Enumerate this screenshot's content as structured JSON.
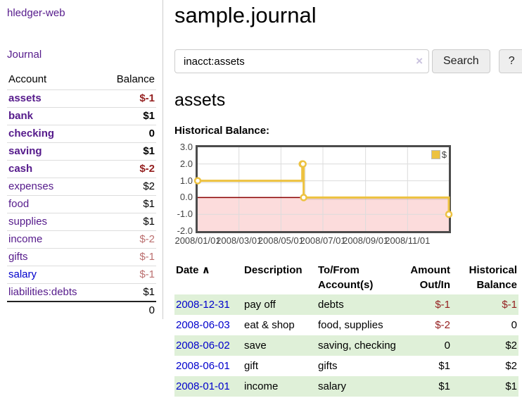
{
  "app": {
    "brand": "hledger-web",
    "nav_journal": "Journal"
  },
  "sidebar": {
    "header": {
      "account": "Account",
      "balance": "Balance"
    },
    "accounts": [
      {
        "name": "assets",
        "balance": "$-1"
      },
      {
        "name": "bank",
        "balance": "$1"
      },
      {
        "name": "checking",
        "balance": "0"
      },
      {
        "name": "saving",
        "balance": "$1"
      },
      {
        "name": "cash",
        "balance": "$-2"
      },
      {
        "name": "expenses",
        "balance": "$2"
      },
      {
        "name": "food",
        "balance": "$1"
      },
      {
        "name": "supplies",
        "balance": "$1"
      },
      {
        "name": "income",
        "balance": "$-2"
      },
      {
        "name": "gifts",
        "balance": "$-1"
      },
      {
        "name": "salary",
        "balance": "$-1"
      },
      {
        "name": "liabilities:debts",
        "balance": "$1"
      }
    ],
    "total": "0"
  },
  "main": {
    "title": "sample.journal",
    "search": {
      "value": "inacct:assets",
      "clear_icon": "×",
      "button": "Search",
      "help": "?"
    },
    "account_heading": "assets",
    "chart_label": "Historical Balance:"
  },
  "chart_data": {
    "type": "line",
    "step": true,
    "title": "Historical Balance:",
    "series": [
      {
        "name": "$",
        "points": [
          [
            "2008-01-01",
            1
          ],
          [
            "2008-06-01",
            2
          ],
          [
            "2008-06-02",
            2
          ],
          [
            "2008-06-03",
            0
          ],
          [
            "2008-12-31",
            -1
          ]
        ]
      }
    ],
    "ylim": [
      -2,
      3
    ],
    "yticks": [
      "3.0",
      "2.0",
      "1.0",
      "0.0",
      "-1.0",
      "-2.0"
    ],
    "xticks": [
      "2008/01/01",
      "2008/03/01",
      "2008/05/01",
      "2008/07/01",
      "2008/09/01",
      "2008/11/01"
    ],
    "legend": {
      "label": "$",
      "position": "top-right"
    },
    "grid": true,
    "colors": {
      "series": "#EDC240",
      "negative_region": "#fcdcdc",
      "zero_line": "#8b0000",
      "grid": "#dcdcdc",
      "border": "#4c4c4c"
    }
  },
  "register": {
    "headers": {
      "date": "Date",
      "sort_indicator": "∧",
      "description": "Description",
      "accounts": "To/From Account(s)",
      "amount": "Amount Out/In",
      "balance": "Historical Balance"
    },
    "rows": [
      {
        "date": "2008-12-31",
        "description": "pay off",
        "accounts": "debts",
        "amount": "$-1",
        "balance": "$-1"
      },
      {
        "date": "2008-06-03",
        "description": "eat & shop",
        "accounts": "food, supplies",
        "amount": "$-2",
        "balance": "0"
      },
      {
        "date": "2008-06-02",
        "description": "save",
        "accounts": "saving, checking",
        "amount": "0",
        "balance": "$2"
      },
      {
        "date": "2008-06-01",
        "description": "gift",
        "accounts": "gifts",
        "amount": "$1",
        "balance": "$2"
      },
      {
        "date": "2008-01-01",
        "description": "income",
        "accounts": "salary",
        "amount": "$1",
        "balance": "$1"
      }
    ]
  },
  "colors": {
    "link_purple": "#551a8b",
    "link_blue": "#0000cc",
    "negative_strong": "#941f1f",
    "negative_soft": "#bb6f6f",
    "row_green": "#dff0d8",
    "series_yellow": "#EDC240"
  }
}
